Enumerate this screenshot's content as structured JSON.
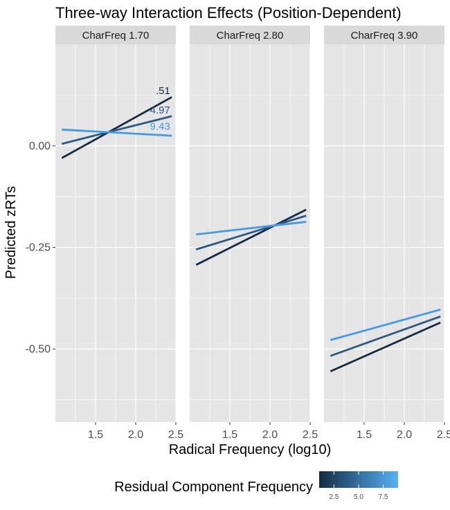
{
  "chart_data": {
    "type": "line",
    "title": "Three-way Interaction Effects (Position-Dependent)",
    "xlabel": "Radical Frequency (log10)",
    "ylabel": "Predicted zRTs",
    "xlim": [
      1.0,
      2.5
    ],
    "ylim": [
      -0.68,
      0.25
    ],
    "x_ticks": [
      "1.5",
      "2.0",
      "2.5"
    ],
    "x_tick_values": [
      1.5,
      2.0,
      2.5
    ],
    "y_ticks": [
      "0.00",
      "-0.25",
      "-0.50"
    ],
    "y_tick_values": [
      0.0,
      -0.25,
      -0.5
    ],
    "grid": true,
    "legend": {
      "title": "Residual Component Frequency",
      "position": "bottom",
      "type": "colorbar",
      "range": [
        1.0,
        9.0
      ],
      "low_color": "#132b43",
      "high_color": "#56b1f7",
      "ticks": [
        "2.5",
        "5.0",
        "7.5"
      ],
      "tick_values": [
        2.5,
        5.0,
        7.5
      ]
    },
    "colors": {
      "panel_bg": "#e5e5e5",
      "strip_bg": "#d9d9d9",
      "grid": "#ffffff"
    },
    "facets": [
      {
        "label": "CharFreq 1.70",
        "series": [
          {
            "residual": 0.51,
            "color": "#132b43",
            "x": [
              1.08,
              2.45
            ],
            "y": [
              -0.03,
              0.12
            ]
          },
          {
            "residual": 4.97,
            "color": "#2c5a85",
            "x": [
              1.08,
              2.45
            ],
            "y": [
              0.005,
              0.073
            ]
          },
          {
            "residual": 9.43,
            "color": "#4499e8",
            "x": [
              1.08,
              2.45
            ],
            "y": [
              0.04,
              0.025
            ]
          }
        ],
        "annotations": [
          {
            "text": ".51",
            "x": 2.43,
            "y": 0.127,
            "color": "#132b43"
          },
          {
            "text": "4.97",
            "x": 2.43,
            "y": 0.08,
            "color": "#2c5a85"
          },
          {
            "text": "9.43",
            "x": 2.43,
            "y": 0.04,
            "color": "#4499e8"
          }
        ]
      },
      {
        "label": "CharFreq 2.80",
        "series": [
          {
            "residual": 0.51,
            "color": "#132b43",
            "x": [
              1.08,
              2.45
            ],
            "y": [
              -0.293,
              -0.157
            ]
          },
          {
            "residual": 4.97,
            "color": "#2c5a85",
            "x": [
              1.08,
              2.45
            ],
            "y": [
              -0.255,
              -0.172
            ]
          },
          {
            "residual": 9.43,
            "color": "#4499e8",
            "x": [
              1.08,
              2.45
            ],
            "y": [
              -0.218,
              -0.187
            ]
          }
        ],
        "annotations": []
      },
      {
        "label": "CharFreq 3.90",
        "series": [
          {
            "residual": 0.51,
            "color": "#132b43",
            "x": [
              1.08,
              2.45
            ],
            "y": [
              -0.555,
              -0.435
            ]
          },
          {
            "residual": 4.97,
            "color": "#2c5a85",
            "x": [
              1.08,
              2.45
            ],
            "y": [
              -0.517,
              -0.42
            ]
          },
          {
            "residual": 9.43,
            "color": "#4499e8",
            "x": [
              1.08,
              2.45
            ],
            "y": [
              -0.478,
              -0.403
            ]
          }
        ],
        "annotations": []
      }
    ]
  }
}
